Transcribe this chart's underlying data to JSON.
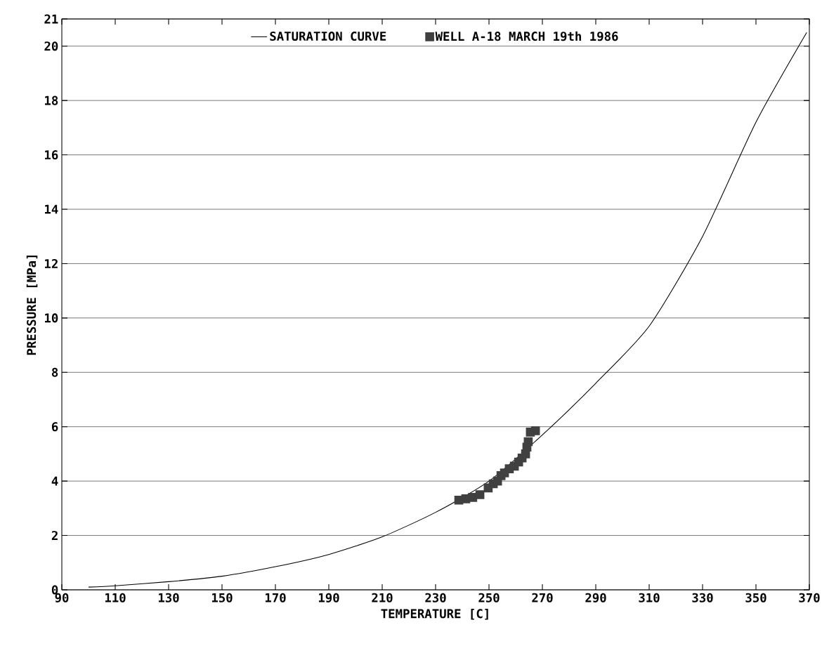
{
  "chart_data": {
    "type": "line",
    "xlabel": "TEMPERATURE [C]",
    "ylabel": "PRESSURE [MPa]",
    "xlim": [
      90,
      370
    ],
    "ylim": [
      0,
      21
    ],
    "xticks": [
      90,
      110,
      130,
      150,
      170,
      190,
      210,
      230,
      250,
      270,
      290,
      310,
      330,
      350,
      370
    ],
    "yticks": [
      0,
      2,
      4,
      6,
      8,
      10,
      12,
      14,
      16,
      18,
      20,
      21
    ],
    "grid": "y",
    "legend": "top",
    "series": [
      {
        "name": "SATURATION CURVE",
        "color": "#000000",
        "line_style": "solid",
        "x": [
          100,
          110,
          130,
          150,
          170,
          190,
          210,
          230,
          250,
          270,
          290,
          310,
          330,
          350,
          369
        ],
        "values": [
          0.1,
          0.15,
          0.3,
          0.5,
          0.85,
          1.3,
          1.95,
          2.85,
          4.0,
          5.7,
          7.6,
          9.7,
          13.0,
          17.2,
          20.5
        ]
      },
      {
        "name": "WELL A-18  MARCH 19th 1986",
        "type": "scatter",
        "color": "#404040",
        "marker": "square",
        "x": [
          238.7,
          241.3,
          243.9,
          246.6,
          249.7,
          251.6,
          253.2,
          254.5,
          255.8,
          257.6,
          259.5,
          261.1,
          262.4,
          263.7,
          264.2,
          264.7,
          265.5,
          267.4
        ],
        "values": [
          3.3,
          3.35,
          3.4,
          3.5,
          3.75,
          3.9,
          4.0,
          4.2,
          4.3,
          4.45,
          4.55,
          4.7,
          4.85,
          5.0,
          5.25,
          5.45,
          5.8,
          5.85
        ]
      }
    ]
  }
}
